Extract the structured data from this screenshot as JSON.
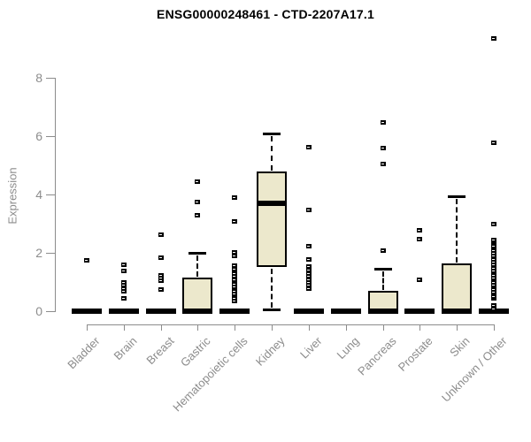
{
  "chart_data": {
    "type": "boxplot",
    "title": "ENSG00000248461 - CTD-2207A17.1",
    "ylabel": "Expression",
    "xlabel": "",
    "ylim": [
      0,
      8
    ],
    "yticks": [
      0,
      2,
      4,
      6,
      8
    ],
    "grid": false,
    "legend": "none",
    "colors": {
      "box_fill": "#ece8cc",
      "box_border": "#000000",
      "median": "#000000",
      "axis": "#8c8c8c",
      "axis_text": "#8c8c8c",
      "title_text": "#000000"
    },
    "categories": [
      "Bladder",
      "Brain",
      "Breast",
      "Gastric",
      "Hematopoietic cells",
      "Kidney",
      "Liver",
      "Lung",
      "Pancreas",
      "Prostate",
      "Skin",
      "Unknown / Other"
    ],
    "series": [
      {
        "category": "Bladder",
        "min": 0,
        "q1": 0,
        "median": 0,
        "q3": 0,
        "max": 0,
        "outliers": [
          1.75
        ]
      },
      {
        "category": "Brain",
        "min": 0,
        "q1": 0,
        "median": 0,
        "q3": 0,
        "max": 0,
        "outliers": [
          0.45,
          0.7,
          0.8,
          0.9,
          1.0,
          1.4,
          1.6
        ]
      },
      {
        "category": "Breast",
        "min": 0,
        "q1": 0,
        "median": 0,
        "q3": 0,
        "max": 0,
        "outliers": [
          0.75,
          1.05,
          1.15,
          1.25,
          1.85,
          2.65
        ]
      },
      {
        "category": "Gastric",
        "min": 0,
        "q1": 0,
        "median": 0,
        "q3": 1.15,
        "max": 2.0,
        "outliers": [
          3.3,
          3.75,
          4.45
        ]
      },
      {
        "category": "Hematopoietic cells",
        "min": 0,
        "q1": 0,
        "median": 0,
        "q3": 0,
        "max": 0,
        "outliers": [
          0.35,
          0.45,
          0.55,
          0.62,
          0.7,
          0.78,
          0.86,
          0.94,
          1.02,
          1.1,
          1.2,
          1.3,
          1.45,
          1.58,
          1.9,
          2.02,
          3.1,
          3.9
        ]
      },
      {
        "category": "Kidney",
        "min": 0.05,
        "q1": 1.5,
        "median": 3.7,
        "q3": 4.8,
        "max": 6.1,
        "outliers": []
      },
      {
        "category": "Liver",
        "min": 0,
        "q1": 0,
        "median": 0,
        "q3": 0,
        "max": 0,
        "outliers": [
          0.8,
          0.9,
          1.0,
          1.1,
          1.2,
          1.3,
          1.42,
          1.55,
          1.8,
          2.25,
          3.5,
          5.65
        ]
      },
      {
        "category": "Lung",
        "min": 0,
        "q1": 0,
        "median": 0,
        "q3": 0,
        "max": 0,
        "outliers": []
      },
      {
        "category": "Pancreas",
        "min": 0,
        "q1": 0,
        "median": 0,
        "q3": 0.7,
        "max": 1.45,
        "outliers": [
          2.1,
          5.05,
          5.6,
          6.5
        ]
      },
      {
        "category": "Prostate",
        "min": 0,
        "q1": 0,
        "median": 0,
        "q3": 0,
        "max": 0,
        "outliers": [
          1.1,
          2.5,
          2.8
        ]
      },
      {
        "category": "Skin",
        "min": 0,
        "q1": 0,
        "median": 0,
        "q3": 1.65,
        "max": 3.95,
        "outliers": []
      },
      {
        "category": "Unknown / Other",
        "min": 0,
        "q1": 0,
        "median": 0,
        "q3": 0,
        "max": 0,
        "outliers": [
          0.1,
          0.2,
          0.45,
          0.52,
          0.6,
          0.68,
          0.76,
          0.84,
          0.92,
          1.0,
          1.08,
          1.16,
          1.24,
          1.32,
          1.4,
          1.5,
          1.6,
          1.7,
          1.8,
          1.9,
          2.0,
          2.1,
          2.25,
          2.4,
          2.45,
          3.0,
          5.8,
          9.35
        ]
      }
    ]
  }
}
